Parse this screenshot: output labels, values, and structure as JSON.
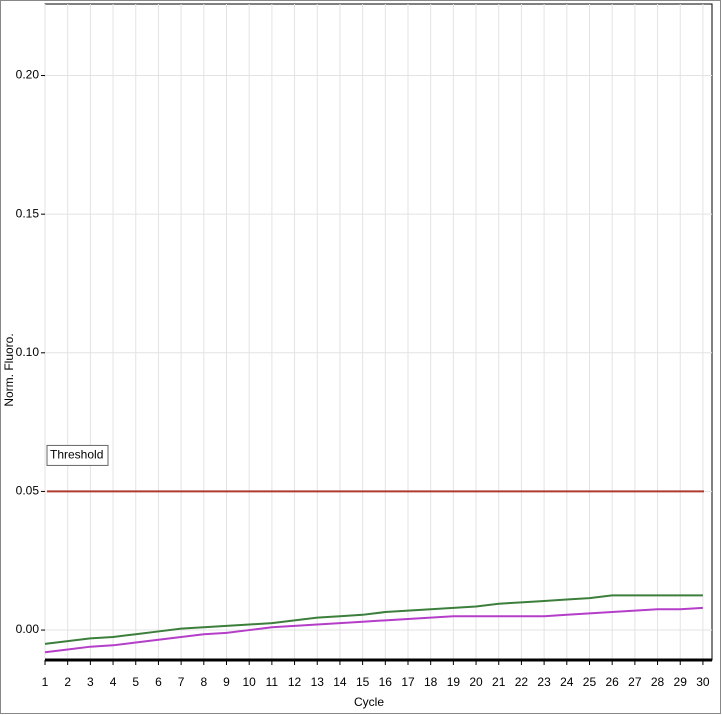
{
  "chart_data": {
    "type": "line",
    "x_label": "Cycle",
    "y_label": "Norm. Fluoro.",
    "x": [
      1,
      2,
      3,
      4,
      5,
      6,
      7,
      8,
      9,
      10,
      11,
      12,
      13,
      14,
      15,
      16,
      17,
      18,
      19,
      20,
      21,
      22,
      23,
      24,
      25,
      26,
      27,
      28,
      29,
      30
    ],
    "series": [
      {
        "color": "#3c7f3c",
        "values": [
          -0.005,
          -0.004,
          -0.003,
          -0.0025,
          -0.0015,
          -0.0005,
          0.0005,
          0.001,
          0.0015,
          0.002,
          0.0025,
          0.0035,
          0.0045,
          0.005,
          0.0055,
          0.0065,
          0.007,
          0.0075,
          0.008,
          0.0085,
          0.0095,
          0.01,
          0.0105,
          0.011,
          0.0115,
          0.0125,
          0.0125,
          0.0125,
          0.0125,
          0.0125
        ]
      },
      {
        "color": "#b53ec9",
        "values": [
          -0.008,
          -0.007,
          -0.006,
          -0.0055,
          -0.0045,
          -0.0035,
          -0.0025,
          -0.0015,
          -0.001,
          0,
          0.001,
          0.0015,
          0.002,
          0.0025,
          0.003,
          0.0035,
          0.004,
          0.0045,
          0.005,
          0.005,
          0.005,
          0.005,
          0.005,
          0.0055,
          0.006,
          0.0065,
          0.007,
          0.0075,
          0.0075,
          0.008
        ]
      }
    ],
    "threshold": {
      "label": "Threshold",
      "value": 0.05,
      "color": "#b03a2e"
    },
    "xlim": [
      1,
      30.4
    ],
    "ylim": [
      -0.0108,
      0.2258
    ],
    "xticks": [
      1,
      2,
      3,
      4,
      5,
      6,
      7,
      8,
      9,
      10,
      11,
      12,
      13,
      14,
      15,
      16,
      17,
      18,
      19,
      20,
      21,
      22,
      23,
      24,
      25,
      26,
      27,
      28,
      29,
      30
    ],
    "yticks": [
      {
        "value": 0,
        "label": "0.00"
      },
      {
        "value": 0.05,
        "label": "0.05"
      },
      {
        "value": 0.1,
        "label": "0.10"
      },
      {
        "value": 0.15,
        "label": "0.15"
      },
      {
        "value": 0.2,
        "label": "0.20"
      }
    ],
    "grid": true
  }
}
